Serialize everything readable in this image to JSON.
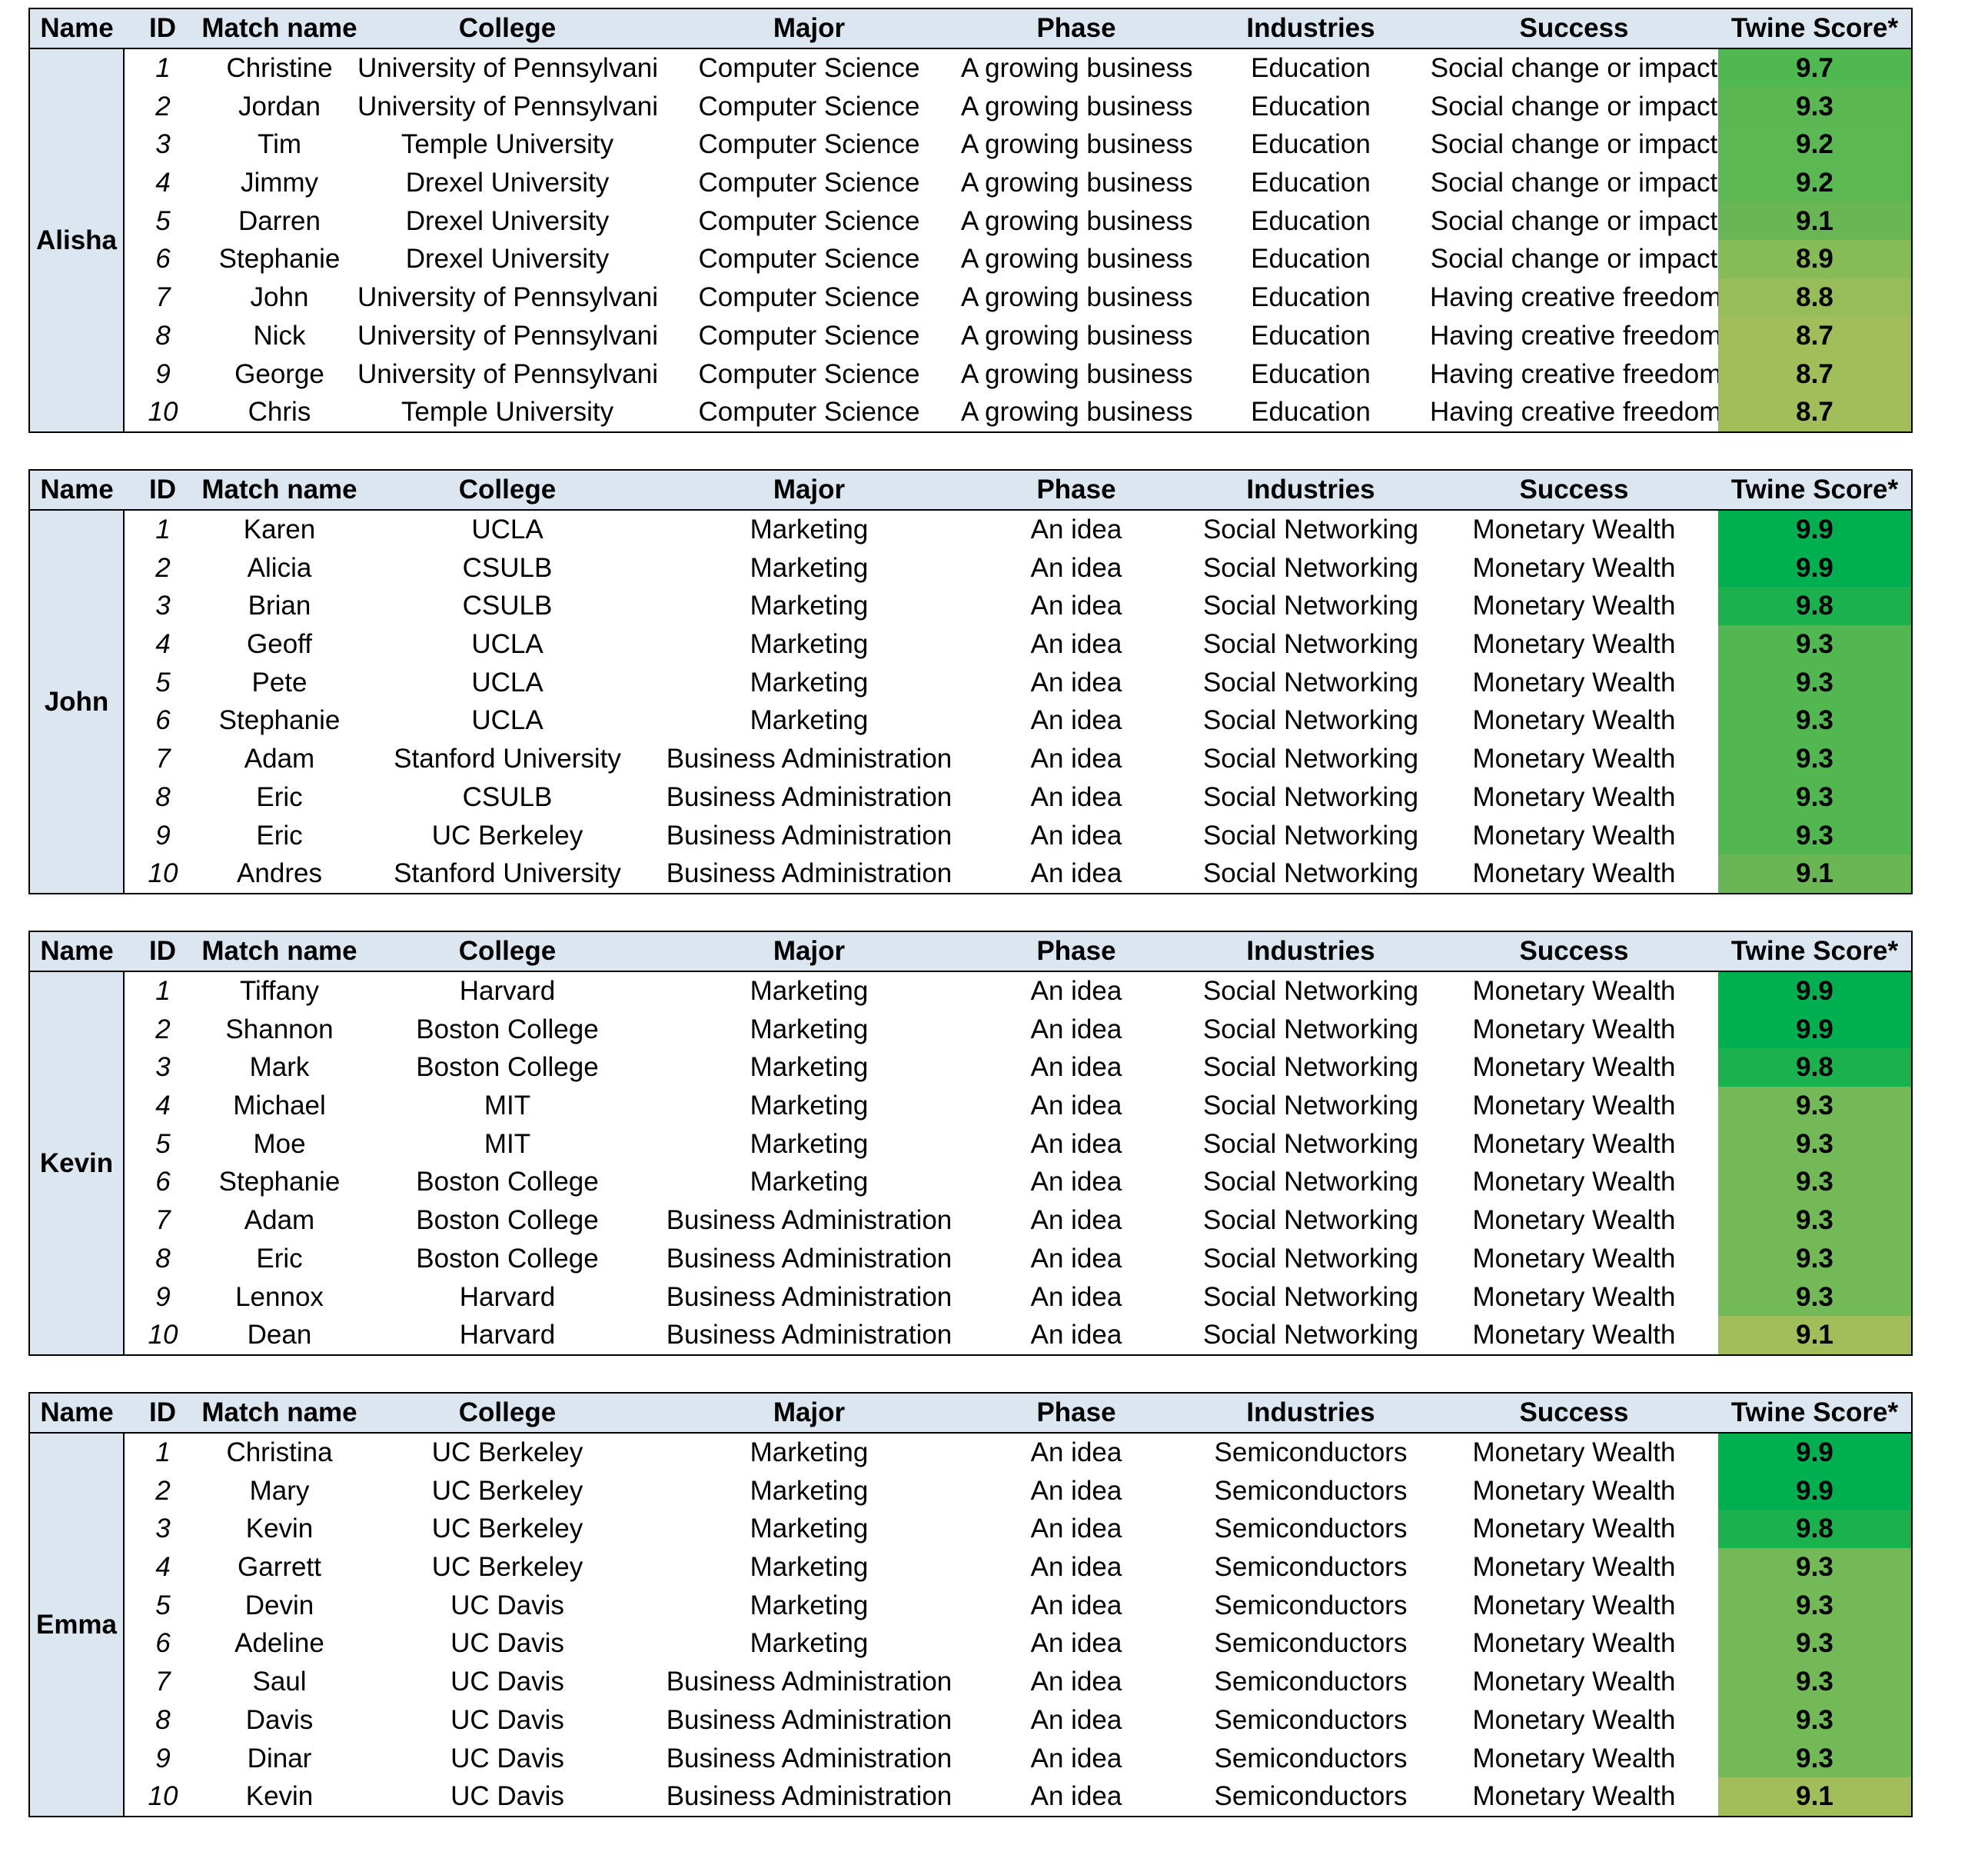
{
  "columns": [
    "Name",
    "ID",
    "Match name",
    "College",
    "Major",
    "Phase",
    "Industries",
    "Success",
    "Twine Score*"
  ],
  "groups": [
    {
      "name": "Alisha",
      "rows": [
        {
          "id": "1",
          "match": "Christine",
          "college": "University of Pennsylvania",
          "major": "Computer Science",
          "phase": "A growing business",
          "industry": "Education",
          "success": "Social change or impact",
          "score": "9.7",
          "color": "#4fb850"
        },
        {
          "id": "2",
          "match": "Jordan",
          "college": "University of Pennsylvania",
          "major": "Computer Science",
          "phase": "A growing business",
          "industry": "Education",
          "success": "Social change or impact",
          "score": "9.3",
          "color": "#5ab752"
        },
        {
          "id": "3",
          "match": "Tim",
          "college": "Temple University",
          "major": "Computer Science",
          "phase": "A growing business",
          "industry": "Education",
          "success": "Social change or impact",
          "score": "9.2",
          "color": "#5cb853"
        },
        {
          "id": "4",
          "match": "Jimmy",
          "college": "Drexel University",
          "major": "Computer Science",
          "phase": "A growing business",
          "industry": "Education",
          "success": "Social change or impact",
          "score": "9.2",
          "color": "#5cb853"
        },
        {
          "id": "5",
          "match": "Darren",
          "college": "Drexel University",
          "major": "Computer Science",
          "phase": "A growing business",
          "industry": "Education",
          "success": "Social change or impact",
          "score": "9.1",
          "color": "#6ab655"
        },
        {
          "id": "6",
          "match": "Stephanie",
          "college": "Drexel University",
          "major": "Computer Science",
          "phase": "A growing business",
          "industry": "Education",
          "success": "Social change or impact",
          "score": "8.9",
          "color": "#86bb58"
        },
        {
          "id": "7",
          "match": "John",
          "college": "University of Pennsylvania",
          "major": "Computer Science",
          "phase": "A growing business",
          "industry": "Education",
          "success": "Having creative freedom",
          "score": "8.8",
          "color": "#97bd5a"
        },
        {
          "id": "8",
          "match": "Nick",
          "college": "University of Pennsylvania",
          "major": "Computer Science",
          "phase": "A growing business",
          "industry": "Education",
          "success": "Having creative freedom",
          "score": "8.7",
          "color": "#a1be5b"
        },
        {
          "id": "9",
          "match": "George",
          "college": "University of Pennsylvania",
          "major": "Computer Science",
          "phase": "A growing business",
          "industry": "Education",
          "success": "Having creative freedom",
          "score": "8.7",
          "color": "#a1be5b"
        },
        {
          "id": "10",
          "match": "Chris",
          "college": "Temple University",
          "major": "Computer Science",
          "phase": "A growing business",
          "industry": "Education",
          "success": "Having creative freedom",
          "score": "8.7",
          "color": "#a1be5b"
        }
      ]
    },
    {
      "name": "John",
      "rows": [
        {
          "id": "1",
          "match": "Karen",
          "college": "UCLA",
          "major": "Marketing",
          "phase": "An idea",
          "industry": "Social Networking",
          "success": "Monetary Wealth",
          "score": "9.9",
          "color": "#00b050"
        },
        {
          "id": "2",
          "match": "Alicia",
          "college": "CSULB",
          "major": "Marketing",
          "phase": "An idea",
          "industry": "Social Networking",
          "success": "Monetary Wealth",
          "score": "9.9",
          "color": "#00b050"
        },
        {
          "id": "3",
          "match": "Brian",
          "college": "CSULB",
          "major": "Marketing",
          "phase": "An idea",
          "industry": "Social Networking",
          "success": "Monetary Wealth",
          "score": "9.8",
          "color": "#1cb14f"
        },
        {
          "id": "4",
          "match": "Geoff",
          "college": "UCLA",
          "major": "Marketing",
          "phase": "An idea",
          "industry": "Social Networking",
          "success": "Monetary Wealth",
          "score": "9.3",
          "color": "#52b651"
        },
        {
          "id": "5",
          "match": "Pete",
          "college": "UCLA",
          "major": "Marketing",
          "phase": "An idea",
          "industry": "Social Networking",
          "success": "Monetary Wealth",
          "score": "9.3",
          "color": "#52b651"
        },
        {
          "id": "6",
          "match": "Stephanie",
          "college": "UCLA",
          "major": "Marketing",
          "phase": "An idea",
          "industry": "Social Networking",
          "success": "Monetary Wealth",
          "score": "9.3",
          "color": "#52b651"
        },
        {
          "id": "7",
          "match": "Adam",
          "college": "Stanford University",
          "major": "Business Administration",
          "phase": "An idea",
          "industry": "Social Networking",
          "success": "Monetary Wealth",
          "score": "9.3",
          "color": "#52b651"
        },
        {
          "id": "8",
          "match": "Eric",
          "college": "CSULB",
          "major": "Business Administration",
          "phase": "An idea",
          "industry": "Social Networking",
          "success": "Monetary Wealth",
          "score": "9.3",
          "color": "#52b651"
        },
        {
          "id": "9",
          "match": "Eric",
          "college": "UC Berkeley",
          "major": "Business Administration",
          "phase": "An idea",
          "industry": "Social Networking",
          "success": "Monetary Wealth",
          "score": "9.3",
          "color": "#52b651"
        },
        {
          "id": "10",
          "match": "Andres",
          "college": "Stanford University",
          "major": "Business Administration",
          "phase": "An idea",
          "industry": "Social Networking",
          "success": "Monetary Wealth",
          "score": "9.1",
          "color": "#6ab655"
        }
      ]
    },
    {
      "name": "Kevin",
      "rows": [
        {
          "id": "1",
          "match": "Tiffany",
          "college": "Harvard",
          "major": "Marketing",
          "phase": "An idea",
          "industry": "Social Networking",
          "success": "Monetary Wealth",
          "score": "9.9",
          "color": "#00b050"
        },
        {
          "id": "2",
          "match": "Shannon",
          "college": "Boston College",
          "major": "Marketing",
          "phase": "An idea",
          "industry": "Social Networking",
          "success": "Monetary Wealth",
          "score": "9.9",
          "color": "#00b050"
        },
        {
          "id": "3",
          "match": "Mark",
          "college": "Boston College",
          "major": "Marketing",
          "phase": "An idea",
          "industry": "Social Networking",
          "success": "Monetary Wealth",
          "score": "9.8",
          "color": "#1cb14f"
        },
        {
          "id": "4",
          "match": "Michael",
          "college": "MIT",
          "major": "Marketing",
          "phase": "An idea",
          "industry": "Social Networking",
          "success": "Monetary Wealth",
          "score": "9.3",
          "color": "#74b957"
        },
        {
          "id": "5",
          "match": "Moe",
          "college": "MIT",
          "major": "Marketing",
          "phase": "An idea",
          "industry": "Social Networking",
          "success": "Monetary Wealth",
          "score": "9.3",
          "color": "#74b957"
        },
        {
          "id": "6",
          "match": "Stephanie",
          "college": "Boston College",
          "major": "Marketing",
          "phase": "An idea",
          "industry": "Social Networking",
          "success": "Monetary Wealth",
          "score": "9.3",
          "color": "#74b957"
        },
        {
          "id": "7",
          "match": "Adam",
          "college": "Boston College",
          "major": "Business Administration",
          "phase": "An idea",
          "industry": "Social Networking",
          "success": "Monetary Wealth",
          "score": "9.3",
          "color": "#74b957"
        },
        {
          "id": "8",
          "match": "Eric",
          "college": "Boston College",
          "major": "Business Administration",
          "phase": "An idea",
          "industry": "Social Networking",
          "success": "Monetary Wealth",
          "score": "9.3",
          "color": "#74b957"
        },
        {
          "id": "9",
          "match": "Lennox",
          "college": "Harvard",
          "major": "Business Administration",
          "phase": "An idea",
          "industry": "Social Networking",
          "success": "Monetary Wealth",
          "score": "9.3",
          "color": "#74b957"
        },
        {
          "id": "10",
          "match": "Dean",
          "college": "Harvard",
          "major": "Business Administration",
          "phase": "An idea",
          "industry": "Social Networking",
          "success": "Monetary Wealth",
          "score": "9.1",
          "color": "#a1be5b"
        }
      ]
    },
    {
      "name": "Emma",
      "rows": [
        {
          "id": "1",
          "match": "Christina",
          "college": "UC Berkeley",
          "major": "Marketing",
          "phase": "An idea",
          "industry": "Semiconductors",
          "success": "Monetary Wealth",
          "score": "9.9",
          "color": "#00b050"
        },
        {
          "id": "2",
          "match": "Mary",
          "college": "UC Berkeley",
          "major": "Marketing",
          "phase": "An idea",
          "industry": "Semiconductors",
          "success": "Monetary Wealth",
          "score": "9.9",
          "color": "#00b050"
        },
        {
          "id": "3",
          "match": "Kevin",
          "college": "UC Berkeley",
          "major": "Marketing",
          "phase": "An idea",
          "industry": "Semiconductors",
          "success": "Monetary Wealth",
          "score": "9.8",
          "color": "#1cb14f"
        },
        {
          "id": "4",
          "match": "Garrett",
          "college": "UC Berkeley",
          "major": "Marketing",
          "phase": "An idea",
          "industry": "Semiconductors",
          "success": "Monetary Wealth",
          "score": "9.3",
          "color": "#74b957"
        },
        {
          "id": "5",
          "match": "Devin",
          "college": "UC Davis",
          "major": "Marketing",
          "phase": "An idea",
          "industry": "Semiconductors",
          "success": "Monetary Wealth",
          "score": "9.3",
          "color": "#74b957"
        },
        {
          "id": "6",
          "match": "Adeline",
          "college": "UC Davis",
          "major": "Marketing",
          "phase": "An idea",
          "industry": "Semiconductors",
          "success": "Monetary Wealth",
          "score": "9.3",
          "color": "#74b957"
        },
        {
          "id": "7",
          "match": "Saul",
          "college": "UC Davis",
          "major": "Business Administration",
          "phase": "An idea",
          "industry": "Semiconductors",
          "success": "Monetary Wealth",
          "score": "9.3",
          "color": "#74b957"
        },
        {
          "id": "8",
          "match": "Davis",
          "college": "UC Davis",
          "major": "Business Administration",
          "phase": "An idea",
          "industry": "Semiconductors",
          "success": "Monetary Wealth",
          "score": "9.3",
          "color": "#74b957"
        },
        {
          "id": "9",
          "match": "Dinar",
          "college": "UC Davis",
          "major": "Business Administration",
          "phase": "An idea",
          "industry": "Semiconductors",
          "success": "Monetary Wealth",
          "score": "9.3",
          "color": "#74b957"
        },
        {
          "id": "10",
          "match": "Kevin",
          "college": "UC Davis",
          "major": "Business Administration",
          "phase": "An idea",
          "industry": "Semiconductors",
          "success": "Monetary Wealth",
          "score": "9.1",
          "color": "#a1be5b"
        }
      ]
    }
  ]
}
